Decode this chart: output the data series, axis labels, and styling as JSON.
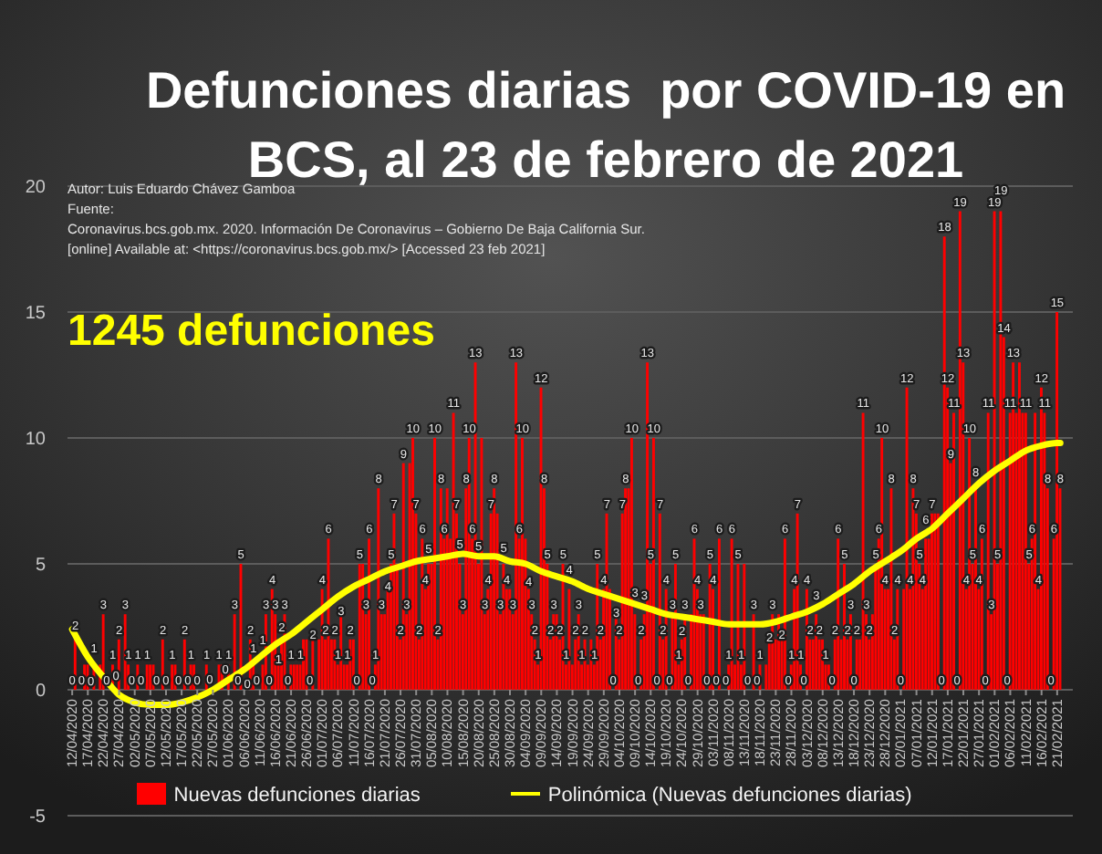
{
  "chart_data": {
    "type": "bar",
    "title": "Defunciones diarias  por COVID-19 en BCS, al 23 de febrero de 2021",
    "annotations": [
      "Autor: Luis Eduardo Chávez Gamboa",
      "Fuente:",
      "Coronavirus.bcs.gob.mx. 2020. Información De Coronavirus – Gobierno De Baja California Sur.",
      "[online] Available at: <https://coronavirus.bcs.gob.mx/> [Accessed 23 feb 2021]",
      "1245 defunciones"
    ],
    "x": [
      "2020-04-12",
      "2020-04-13",
      "2020-04-14",
      "2020-04-15",
      "2020-04-16",
      "2020-04-17",
      "2020-04-18",
      "2020-04-19",
      "2020-04-20",
      "2020-04-21",
      "2020-04-22",
      "2020-04-23",
      "2020-04-24",
      "2020-04-25",
      "2020-04-26",
      "2020-04-27",
      "2020-04-28",
      "2020-04-29",
      "2020-04-30",
      "2020-05-01",
      "2020-05-02",
      "2020-05-03",
      "2020-05-04",
      "2020-05-05",
      "2020-05-06",
      "2020-05-07",
      "2020-05-08",
      "2020-05-09",
      "2020-05-10",
      "2020-05-11",
      "2020-05-12",
      "2020-05-13",
      "2020-05-14",
      "2020-05-15",
      "2020-05-16",
      "2020-05-17",
      "2020-05-18",
      "2020-05-19",
      "2020-05-20",
      "2020-05-21",
      "2020-05-22",
      "2020-05-23",
      "2020-05-24",
      "2020-05-25",
      "2020-05-26",
      "2020-05-27",
      "2020-05-28",
      "2020-05-29",
      "2020-05-30",
      "2020-05-31",
      "2020-06-01",
      "2020-06-02",
      "2020-06-03",
      "2020-06-04",
      "2020-06-05",
      "2020-06-06",
      "2020-06-07",
      "2020-06-08",
      "2020-06-09",
      "2020-06-10",
      "2020-06-11",
      "2020-06-12",
      "2020-06-13",
      "2020-06-14",
      "2020-06-15",
      "2020-06-16",
      "2020-06-17",
      "2020-06-18",
      "2020-06-19",
      "2020-06-20",
      "2020-06-21",
      "2020-06-22",
      "2020-06-23",
      "2020-06-24",
      "2020-06-25",
      "2020-06-26",
      "2020-06-27",
      "2020-06-28",
      "2020-06-29",
      "2020-06-30",
      "2020-07-01",
      "2020-07-02",
      "2020-07-03",
      "2020-07-04",
      "2020-07-05",
      "2020-07-06",
      "2020-07-07",
      "2020-07-08",
      "2020-07-09",
      "2020-07-10",
      "2020-07-11",
      "2020-07-12",
      "2020-07-13",
      "2020-07-14",
      "2020-07-15",
      "2020-07-16",
      "2020-07-17",
      "2020-07-18",
      "2020-07-19",
      "2020-07-20",
      "2020-07-21",
      "2020-07-22",
      "2020-07-23",
      "2020-07-24",
      "2020-07-25",
      "2020-07-26",
      "2020-07-27",
      "2020-07-28",
      "2020-07-29",
      "2020-07-30",
      "2020-07-31",
      "2020-08-01",
      "2020-08-02",
      "2020-08-03",
      "2020-08-04",
      "2020-08-05",
      "2020-08-06",
      "2020-08-07",
      "2020-08-08",
      "2020-08-09",
      "2020-08-10",
      "2020-08-11",
      "2020-08-12",
      "2020-08-13",
      "2020-08-14",
      "2020-08-15",
      "2020-08-16",
      "2020-08-17",
      "2020-08-18",
      "2020-08-19",
      "2020-08-20",
      "2020-08-21",
      "2020-08-22",
      "2020-08-23",
      "2020-08-24",
      "2020-08-25",
      "2020-08-26",
      "2020-08-27",
      "2020-08-28",
      "2020-08-29",
      "2020-08-30",
      "2020-08-31",
      "2020-09-01",
      "2020-09-02",
      "2020-09-03",
      "2020-09-04",
      "2020-09-05",
      "2020-09-06",
      "2020-09-07",
      "2020-09-08",
      "2020-09-09",
      "2020-09-10",
      "2020-09-11",
      "2020-09-12",
      "2020-09-13",
      "2020-09-14",
      "2020-09-15",
      "2020-09-16",
      "2020-09-17",
      "2020-09-18",
      "2020-09-19",
      "2020-09-20",
      "2020-09-21",
      "2020-09-22",
      "2020-09-23",
      "2020-09-24",
      "2020-09-25",
      "2020-09-26",
      "2020-09-27",
      "2020-09-28",
      "2020-09-29",
      "2020-09-30",
      "2020-10-01",
      "2020-10-02",
      "2020-10-03",
      "2020-10-04",
      "2020-10-05",
      "2020-10-06",
      "2020-10-07",
      "2020-10-08",
      "2020-10-09",
      "2020-10-10",
      "2020-10-11",
      "2020-10-12",
      "2020-10-13",
      "2020-10-14",
      "2020-10-15",
      "2020-10-16",
      "2020-10-17",
      "2020-10-18",
      "2020-10-19",
      "2020-10-20",
      "2020-10-21",
      "2020-10-22",
      "2020-10-23",
      "2020-10-24",
      "2020-10-25",
      "2020-10-26",
      "2020-10-27",
      "2020-10-28",
      "2020-10-29",
      "2020-10-30",
      "2020-10-31",
      "2020-11-01",
      "2020-11-02",
      "2020-11-03",
      "2020-11-04",
      "2020-11-05",
      "2020-11-06",
      "2020-11-07",
      "2020-11-08",
      "2020-11-09",
      "2020-11-10",
      "2020-11-11",
      "2020-11-12",
      "2020-11-13",
      "2020-11-14",
      "2020-11-15",
      "2020-11-16",
      "2020-11-17",
      "2020-11-18",
      "2020-11-19",
      "2020-11-20",
      "2020-11-21",
      "2020-11-22",
      "2020-11-23",
      "2020-11-24",
      "2020-11-25",
      "2020-11-26",
      "2020-11-27",
      "2020-11-28",
      "2020-11-29",
      "2020-11-30",
      "2020-12-01",
      "2020-12-02",
      "2020-12-03",
      "2020-12-04",
      "2020-12-05",
      "2020-12-06",
      "2020-12-07",
      "2020-12-08",
      "2020-12-09",
      "2020-12-10",
      "2020-12-11",
      "2020-12-12",
      "2020-12-13",
      "2020-12-14",
      "2020-12-15",
      "2020-12-16",
      "2020-12-17",
      "2020-12-18",
      "2020-12-19",
      "2020-12-20",
      "2020-12-21",
      "2020-12-22",
      "2020-12-23",
      "2020-12-24",
      "2020-12-25",
      "2020-12-26",
      "2020-12-27",
      "2020-12-28",
      "2020-12-29",
      "2020-12-30",
      "2020-12-31",
      "2021-01-01",
      "2021-01-02",
      "2021-01-03",
      "2021-01-04",
      "2021-01-05",
      "2021-01-06",
      "2021-01-07",
      "2021-01-08",
      "2021-01-09",
      "2021-01-10",
      "2021-01-11",
      "2021-01-12",
      "2021-01-13",
      "2021-01-14",
      "2021-01-15",
      "2021-01-16",
      "2021-01-17",
      "2021-01-18",
      "2021-01-19",
      "2021-01-20",
      "2021-01-21",
      "2021-01-22",
      "2021-01-23",
      "2021-01-24",
      "2021-01-25",
      "2021-01-26",
      "2021-01-27",
      "2021-01-28",
      "2021-01-29",
      "2021-01-30",
      "2021-01-31",
      "2021-02-01",
      "2021-02-02",
      "2021-02-03",
      "2021-02-04",
      "2021-02-05",
      "2021-02-06",
      "2021-02-07",
      "2021-02-08",
      "2021-02-09",
      "2021-02-10",
      "2021-02-11",
      "2021-02-12",
      "2021-02-13",
      "2021-02-14",
      "2021-02-15",
      "2021-02-16",
      "2021-02-17",
      "2021-02-18",
      "2021-02-19",
      "2021-02-20",
      "2021-02-21",
      "2021-02-22"
    ],
    "xlim": [
      "2020-04-10T12:00",
      "2021-02-26"
    ],
    "xticks": [
      {
        "value": "2020-04-12",
        "label": "12/04/2020"
      },
      {
        "value": "2020-04-17",
        "label": "17/04/2020"
      },
      {
        "value": "2020-04-22",
        "label": "22/04/2020"
      },
      {
        "value": "2020-04-27",
        "label": "27/04/2020"
      },
      {
        "value": "2020-05-02",
        "label": "02/05/2020"
      },
      {
        "value": "2020-05-07",
        "label": "07/05/2020"
      },
      {
        "value": "2020-05-12",
        "label": "12/05/2020"
      },
      {
        "value": "2020-05-17",
        "label": "17/05/2020"
      },
      {
        "value": "2020-05-22",
        "label": "22/05/2020"
      },
      {
        "value": "2020-05-27",
        "label": "27/05/2020"
      },
      {
        "value": "2020-06-01",
        "label": "01/06/2020"
      },
      {
        "value": "2020-06-06",
        "label": "06/06/2020"
      },
      {
        "value": "2020-06-11",
        "label": "11/06/2020"
      },
      {
        "value": "2020-06-16",
        "label": "16/06/2020"
      },
      {
        "value": "2020-06-21",
        "label": "21/06/2020"
      },
      {
        "value": "2020-06-26",
        "label": "26/06/2020"
      },
      {
        "value": "2020-07-01",
        "label": "01/07/2020"
      },
      {
        "value": "2020-07-06",
        "label": "06/07/2020"
      },
      {
        "value": "2020-07-11",
        "label": "11/07/2020"
      },
      {
        "value": "2020-07-16",
        "label": "16/07/2020"
      },
      {
        "value": "2020-07-21",
        "label": "21/07/2020"
      },
      {
        "value": "2020-07-26",
        "label": "26/07/2020"
      },
      {
        "value": "2020-07-31",
        "label": "31/07/2020"
      },
      {
        "value": "2020-08-05",
        "label": "05/08/2020"
      },
      {
        "value": "2020-08-10",
        "label": "10/08/2020"
      },
      {
        "value": "2020-08-15",
        "label": "15/08/2020"
      },
      {
        "value": "2020-08-20",
        "label": "20/08/2020"
      },
      {
        "value": "2020-08-25",
        "label": "25/08/2020"
      },
      {
        "value": "2020-08-30",
        "label": "30/08/2020"
      },
      {
        "value": "2020-09-04",
        "label": "04/09/2020"
      },
      {
        "value": "2020-09-09",
        "label": "09/09/2020"
      },
      {
        "value": "2020-09-14",
        "label": "14/09/2020"
      },
      {
        "value": "2020-09-19",
        "label": "19/09/2020"
      },
      {
        "value": "2020-09-24",
        "label": "24/09/2020"
      },
      {
        "value": "2020-09-29",
        "label": "29/09/2020"
      },
      {
        "value": "2020-10-04",
        "label": "04/10/2020"
      },
      {
        "value": "2020-10-09",
        "label": "09/10/2020"
      },
      {
        "value": "2020-10-14",
        "label": "14/10/2020"
      },
      {
        "value": "2020-10-19",
        "label": "19/10/2020"
      },
      {
        "value": "2020-10-24",
        "label": "24/10/2020"
      },
      {
        "value": "2020-10-29",
        "label": "29/10/2020"
      },
      {
        "value": "2020-11-03",
        "label": "03/11/2020"
      },
      {
        "value": "2020-11-08",
        "label": "08/11/2020"
      },
      {
        "value": "2020-11-13",
        "label": "13/11/2020"
      },
      {
        "value": "2020-11-18",
        "label": "18/11/2020"
      },
      {
        "value": "2020-11-23",
        "label": "23/11/2020"
      },
      {
        "value": "2020-11-28",
        "label": "28/11/2020"
      },
      {
        "value": "2020-12-03",
        "label": "03/12/2020"
      },
      {
        "value": "2020-12-08",
        "label": "08/12/2020"
      },
      {
        "value": "2020-12-13",
        "label": "13/12/2020"
      },
      {
        "value": "2020-12-18",
        "label": "18/12/2020"
      },
      {
        "value": "2020-12-23",
        "label": "23/12/2020"
      },
      {
        "value": "2020-12-28",
        "label": "28/12/2020"
      },
      {
        "value": "2021-01-02",
        "label": "02/01/2021"
      },
      {
        "value": "2021-01-07",
        "label": "07/01/2021"
      },
      {
        "value": "2021-01-12",
        "label": "12/01/2021"
      },
      {
        "value": "2021-01-17",
        "label": "17/01/2021"
      },
      {
        "value": "2021-01-22",
        "label": "22/01/2021"
      },
      {
        "value": "2021-01-27",
        "label": "27/01/2021"
      },
      {
        "value": "2021-02-01",
        "label": "01/02/2021"
      },
      {
        "value": "2021-02-06",
        "label": "06/02/2021"
      },
      {
        "value": "2021-02-11",
        "label": "11/02/2021"
      },
      {
        "value": "2021-02-16",
        "label": "16/02/2021"
      },
      {
        "value": "2021-02-21",
        "label": "21/02/2021"
      }
    ],
    "ylim": [
      -5,
      20
    ],
    "yticks": [
      -5,
      0,
      5,
      10,
      15,
      20
    ],
    "grid": "y",
    "legend": "bottom",
    "series": [
      {
        "name": "Nuevas defunciones diarias",
        "color": "#ff0000",
        "values": [
          0,
          2,
          0,
          0,
          1,
          1,
          0,
          1,
          0,
          1,
          3,
          0,
          0,
          1,
          0,
          2,
          0,
          3,
          1,
          0,
          0,
          1,
          0,
          0,
          1,
          1,
          1,
          0,
          0,
          2,
          0,
          0,
          1,
          1,
          0,
          0,
          2,
          0,
          1,
          1,
          0,
          0,
          0,
          1,
          0,
          0,
          0,
          1,
          1,
          0,
          1,
          0,
          3,
          0,
          5,
          0,
          0,
          2,
          1,
          0,
          0,
          1,
          3,
          0,
          4,
          3,
          1,
          2,
          3,
          0,
          1,
          1,
          1,
          1,
          2,
          2,
          0,
          2,
          0,
          2,
          4,
          2,
          6,
          2,
          2,
          1,
          3,
          1,
          1,
          2,
          2,
          0,
          5,
          5,
          3,
          6,
          0,
          1,
          8,
          3,
          3,
          4,
          5,
          7,
          5,
          2,
          9,
          3,
          9,
          10,
          7,
          2,
          6,
          4,
          5,
          5,
          10,
          2,
          8,
          6,
          8,
          6,
          11,
          7,
          5,
          3,
          8,
          10,
          6,
          13,
          5,
          10,
          3,
          4,
          7,
          8,
          7,
          3,
          5,
          4,
          4,
          3,
          13,
          6,
          10,
          6,
          4,
          3,
          2,
          1,
          12,
          8,
          5,
          2,
          3,
          3,
          2,
          5,
          1,
          4,
          1,
          2,
          3,
          1,
          2,
          1,
          2,
          1,
          5,
          2,
          4,
          7,
          4,
          0,
          3,
          2,
          7,
          8,
          8,
          10,
          3,
          0,
          2,
          3,
          13,
          5,
          10,
          0,
          7,
          2,
          4,
          0,
          3,
          5,
          1,
          2,
          3,
          0,
          3,
          6,
          4,
          3,
          3,
          0,
          5,
          4,
          0,
          6,
          0,
          0,
          1,
          6,
          1,
          5,
          1,
          5,
          0,
          0,
          3,
          0,
          1,
          0,
          1,
          2,
          3,
          2,
          3,
          2,
          6,
          0,
          1,
          4,
          7,
          1,
          0,
          4,
          2,
          2,
          3,
          2,
          2,
          1,
          1,
          0,
          2,
          6,
          2,
          5,
          2,
          3,
          0,
          2,
          2,
          11,
          3,
          2,
          3,
          5,
          6,
          10,
          4,
          4,
          8,
          2,
          4,
          0,
          4,
          12,
          4,
          8,
          7,
          5,
          4,
          6,
          6,
          7,
          7,
          7,
          0,
          18,
          12,
          9,
          11,
          0,
          19,
          13,
          4,
          10,
          5,
          8,
          4,
          6,
          0,
          11,
          3,
          19,
          5,
          19,
          14,
          0,
          11,
          13,
          11,
          13,
          11,
          11,
          5,
          6,
          11,
          4,
          12,
          11,
          8,
          0,
          6,
          15,
          8
        ],
        "value_labels": [
          "0",
          "2",
          null,
          "0",
          null,
          null,
          "0",
          "1",
          null,
          null,
          "3",
          "0",
          null,
          "1",
          "0",
          "2",
          null,
          "3",
          "1",
          "0",
          null,
          "1",
          "0",
          null,
          "1",
          null,
          null,
          "0",
          null,
          "2",
          "0",
          null,
          "1",
          null,
          "0",
          null,
          "2",
          "0",
          "1",
          null,
          "0",
          null,
          null,
          "1",
          "0",
          null,
          null,
          "1",
          null,
          "0",
          "1",
          null,
          "3",
          "0",
          "5",
          null,
          "0",
          "2",
          "1",
          "0",
          null,
          "1",
          "3",
          "0",
          "4",
          "3",
          "1",
          "2",
          "3",
          "0",
          "1",
          null,
          null,
          "1",
          null,
          null,
          "0",
          "2",
          null,
          null,
          "4",
          "2",
          "6",
          null,
          "2",
          "1",
          "3",
          null,
          "1",
          "2",
          null,
          "0",
          "5",
          null,
          "3",
          "6",
          "0",
          "1",
          "8",
          "3",
          null,
          "4",
          "5",
          "7",
          null,
          "2",
          "9",
          "3",
          null,
          "10",
          "7",
          "2",
          "6",
          "4",
          "5",
          null,
          "10",
          "2",
          "8",
          "6",
          null,
          null,
          "11",
          "7",
          "5",
          "3",
          "8",
          "10",
          "6",
          "13",
          "5",
          null,
          "3",
          "4",
          "7",
          "8",
          null,
          "3",
          "5",
          "4",
          null,
          "3",
          "13",
          "6",
          "10",
          null,
          "4",
          "3",
          "2",
          "1",
          "12",
          "8",
          "5",
          "2",
          "3",
          null,
          "2",
          "5",
          "1",
          "4",
          null,
          "2",
          "3",
          "1",
          "2",
          null,
          null,
          "1",
          "5",
          "2",
          "4",
          "7",
          null,
          "0",
          "3",
          "2",
          "7",
          "8",
          null,
          "10",
          "3",
          "0",
          "2",
          "3",
          "13",
          "5",
          "10",
          "0",
          "7",
          "2",
          "4",
          "0",
          "3",
          "5",
          "1",
          "2",
          "3",
          "0",
          null,
          "6",
          "4",
          "3",
          null,
          "0",
          "5",
          "4",
          "0",
          "6",
          null,
          "0",
          "1",
          "6",
          null,
          "5",
          "1",
          null,
          "0",
          null,
          "3",
          "0",
          "1",
          null,
          null,
          "2",
          "3",
          null,
          null,
          "2",
          "6",
          "0",
          "1",
          "4",
          "7",
          "1",
          "0",
          "4",
          "2",
          null,
          "3",
          "2",
          null,
          "1",
          null,
          "0",
          "2",
          "6",
          null,
          "5",
          "2",
          "3",
          "0",
          "2",
          null,
          "11",
          "3",
          "2",
          null,
          "5",
          "6",
          "10",
          "4",
          null,
          "8",
          "2",
          "4",
          "0",
          null,
          "12",
          "4",
          "8",
          "7",
          "5",
          "4",
          "6",
          null,
          "7",
          null,
          null,
          "0",
          "18",
          "12",
          "9",
          "11",
          "0",
          "19",
          "13",
          "4",
          "10",
          "5",
          "8",
          "4",
          "6",
          "0",
          "11",
          "3",
          "19",
          "5",
          "19",
          "14",
          "0",
          "11",
          "13",
          null,
          null,
          null,
          "11",
          "5",
          "6",
          null,
          "4",
          "12",
          "11",
          "8",
          "0",
          "6",
          "15",
          "8"
        ]
      },
      {
        "name": "Polinómica (Nuevas defunciones diarias)",
        "type": "line",
        "color": "#ffff00",
        "x": [
          "2020-04-12",
          "2020-04-17",
          "2020-04-22",
          "2020-04-27",
          "2020-05-02",
          "2020-05-07",
          "2020-05-12",
          "2020-05-17",
          "2020-05-22",
          "2020-05-27",
          "2020-06-01",
          "2020-06-06",
          "2020-06-11",
          "2020-06-16",
          "2020-06-21",
          "2020-06-26",
          "2020-07-01",
          "2020-07-06",
          "2020-07-11",
          "2020-07-16",
          "2020-07-21",
          "2020-07-26",
          "2020-07-31",
          "2020-08-05",
          "2020-08-10",
          "2020-08-15",
          "2020-08-20",
          "2020-08-25",
          "2020-08-30",
          "2020-09-04",
          "2020-09-09",
          "2020-09-14",
          "2020-09-19",
          "2020-09-24",
          "2020-09-29",
          "2020-10-04",
          "2020-10-09",
          "2020-10-14",
          "2020-10-19",
          "2020-10-24",
          "2020-10-29",
          "2020-11-03",
          "2020-11-08",
          "2020-11-13",
          "2020-11-18",
          "2020-11-23",
          "2020-11-28",
          "2020-12-03",
          "2020-12-08",
          "2020-12-13",
          "2020-12-18",
          "2020-12-23",
          "2020-12-28",
          "2021-01-02",
          "2021-01-07",
          "2021-01-12",
          "2021-01-17",
          "2021-01-22",
          "2021-01-27",
          "2021-02-01",
          "2021-02-06",
          "2021-02-11",
          "2021-02-16",
          "2021-02-21",
          "2021-02-22"
        ],
        "values": [
          2.4,
          1.3,
          0.5,
          -0.2,
          -0.5,
          -0.6,
          -0.6,
          -0.5,
          -0.3,
          0,
          0.4,
          0.8,
          1.3,
          1.8,
          2.2,
          2.7,
          3.2,
          3.7,
          4.1,
          4.4,
          4.7,
          4.9,
          5.1,
          5.2,
          5.3,
          5.4,
          5.3,
          5.3,
          5.1,
          5.0,
          4.7,
          4.5,
          4.3,
          4.0,
          3.8,
          3.6,
          3.4,
          3.2,
          3.0,
          2.9,
          2.8,
          2.7,
          2.6,
          2.6,
          2.6,
          2.7,
          2.9,
          3.1,
          3.4,
          3.8,
          4.2,
          4.7,
          5.1,
          5.5,
          6.0,
          6.4,
          7.0,
          7.6,
          8.2,
          8.7,
          9.1,
          9.5,
          9.7,
          9.8,
          9.8
        ]
      }
    ]
  }
}
